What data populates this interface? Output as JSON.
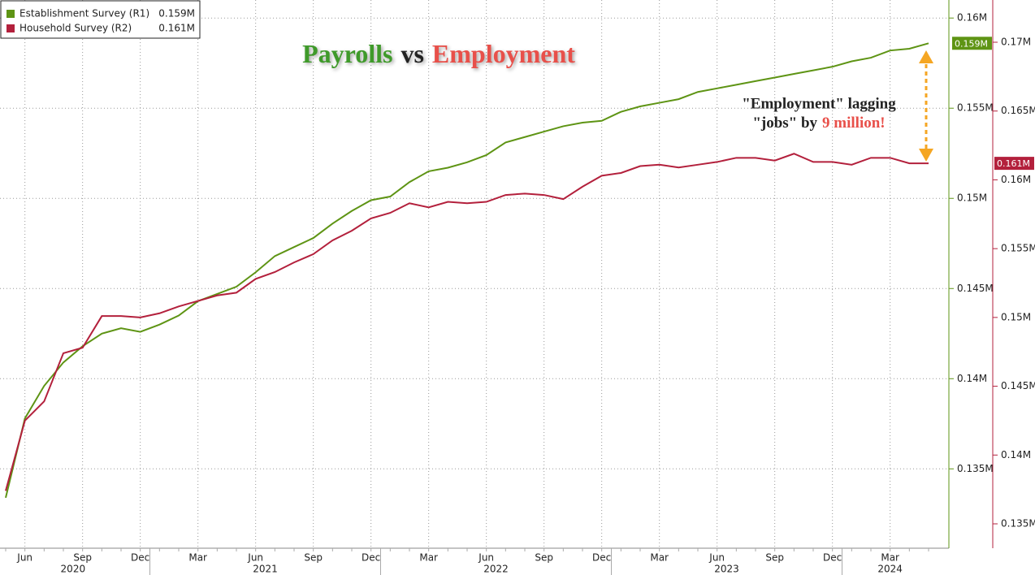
{
  "chart_data": {
    "type": "line",
    "title_parts": [
      "Payrolls",
      "vs",
      "Employment"
    ],
    "title_colors": [
      "#3f9a2a",
      "#222222",
      "#e8504a"
    ],
    "annotation_lines": [
      "\"Employment\" lagging",
      "\"jobs\" by"
    ],
    "annotation_highlight": "9 million!",
    "annotation_highlight_color": "#e8504a",
    "x": [
      "2020-05",
      "2020-06",
      "2020-07",
      "2020-08",
      "2020-09",
      "2020-10",
      "2020-11",
      "2020-12",
      "2021-01",
      "2021-02",
      "2021-03",
      "2021-04",
      "2021-05",
      "2021-06",
      "2021-07",
      "2021-08",
      "2021-09",
      "2021-10",
      "2021-11",
      "2021-12",
      "2022-01",
      "2022-02",
      "2022-03",
      "2022-04",
      "2022-05",
      "2022-06",
      "2022-07",
      "2022-08",
      "2022-09",
      "2022-10",
      "2022-11",
      "2022-12",
      "2023-01",
      "2023-02",
      "2023-03",
      "2023-04",
      "2023-05",
      "2023-06",
      "2023-07",
      "2023-08",
      "2023-09",
      "2023-10",
      "2023-11",
      "2023-12",
      "2024-01",
      "2024-02",
      "2024-03",
      "2024-04",
      "2024-05"
    ],
    "xticks": [
      {
        "value": "2020-06",
        "label": "Jun"
      },
      {
        "value": "2020-09",
        "label": "Sep"
      },
      {
        "value": "2020-12",
        "label": "Dec"
      },
      {
        "value": "2021-03",
        "label": "Mar"
      },
      {
        "value": "2021-06",
        "label": "Jun"
      },
      {
        "value": "2021-09",
        "label": "Sep"
      },
      {
        "value": "2021-12",
        "label": "Dec"
      },
      {
        "value": "2022-03",
        "label": "Mar"
      },
      {
        "value": "2022-06",
        "label": "Jun"
      },
      {
        "value": "2022-09",
        "label": "Sep"
      },
      {
        "value": "2022-12",
        "label": "Dec"
      },
      {
        "value": "2023-03",
        "label": "Mar"
      },
      {
        "value": "2023-06",
        "label": "Jun"
      },
      {
        "value": "2023-09",
        "label": "Sep"
      },
      {
        "value": "2023-12",
        "label": "Dec"
      },
      {
        "value": "2024-03",
        "label": "Mar"
      }
    ],
    "years": [
      "2020",
      "2021",
      "2022",
      "2023",
      "2024"
    ],
    "series": [
      {
        "name": "Establishment Survey (R1)",
        "color": "#5e9414",
        "last_label": "0.159M",
        "values": [
          0.1334,
          0.1378,
          0.1396,
          0.1409,
          0.1418,
          0.1425,
          0.1428,
          0.1426,
          0.143,
          0.1435,
          0.1443,
          0.1447,
          0.1451,
          0.1459,
          0.1468,
          0.1473,
          0.1478,
          0.1486,
          0.1493,
          0.1499,
          0.1501,
          0.1509,
          0.1515,
          0.1517,
          0.152,
          0.1524,
          0.1531,
          0.1534,
          0.1537,
          0.154,
          0.1542,
          0.1543,
          0.1548,
          0.1551,
          0.1553,
          0.1555,
          0.1559,
          0.1561,
          0.1563,
          0.1565,
          0.1567,
          0.1569,
          0.1571,
          0.1573,
          0.1576,
          0.1578,
          0.1582,
          0.1583,
          0.1586
        ]
      },
      {
        "name": "Household Survey (R2)",
        "color": "#b3203c",
        "last_label": "0.161M",
        "axis": "y2",
        "values": [
          0.1374,
          0.1425,
          0.1439,
          0.1474,
          0.1478,
          0.1501,
          0.1501,
          0.15,
          0.1503,
          0.1508,
          0.1512,
          0.1516,
          0.1518,
          0.1528,
          0.1533,
          0.154,
          0.1546,
          0.1556,
          0.1563,
          0.1572,
          0.1576,
          0.1583,
          0.158,
          0.1584,
          0.1583,
          0.1584,
          0.1589,
          0.159,
          0.1589,
          0.1586,
          0.1595,
          0.1603,
          0.1605,
          0.161,
          0.1611,
          0.1609,
          0.1611,
          0.1613,
          0.1616,
          0.1616,
          0.1614,
          0.1619,
          0.1613,
          0.1613,
          0.1611,
          0.1616,
          0.1616,
          0.1612,
          0.1612
        ]
      }
    ],
    "ylim": [
      0.1306,
      0.161
    ],
    "yticks": [
      {
        "value": 0.135,
        "label": "0.135M"
      },
      {
        "value": 0.14,
        "label": "0.14M"
      },
      {
        "value": 0.145,
        "label": "0.145M"
      },
      {
        "value": 0.15,
        "label": "0.15M"
      },
      {
        "value": 0.155,
        "label": "0.155M"
      },
      {
        "value": 0.16,
        "label": "0.16M"
      }
    ],
    "y2lim": [
      0.13323,
      0.17307
    ],
    "y2ticks": [
      {
        "value": 0.135,
        "label": "0.135M"
      },
      {
        "value": 0.14,
        "label": "0.14M"
      },
      {
        "value": 0.145,
        "label": "0.145M"
      },
      {
        "value": 0.15,
        "label": "0.15M"
      },
      {
        "value": 0.155,
        "label": "0.155M"
      },
      {
        "value": 0.16,
        "label": "0.16M"
      },
      {
        "value": 0.165,
        "label": "0.165M"
      },
      {
        "value": 0.17,
        "label": "0.17M"
      }
    ],
    "grid": true
  }
}
